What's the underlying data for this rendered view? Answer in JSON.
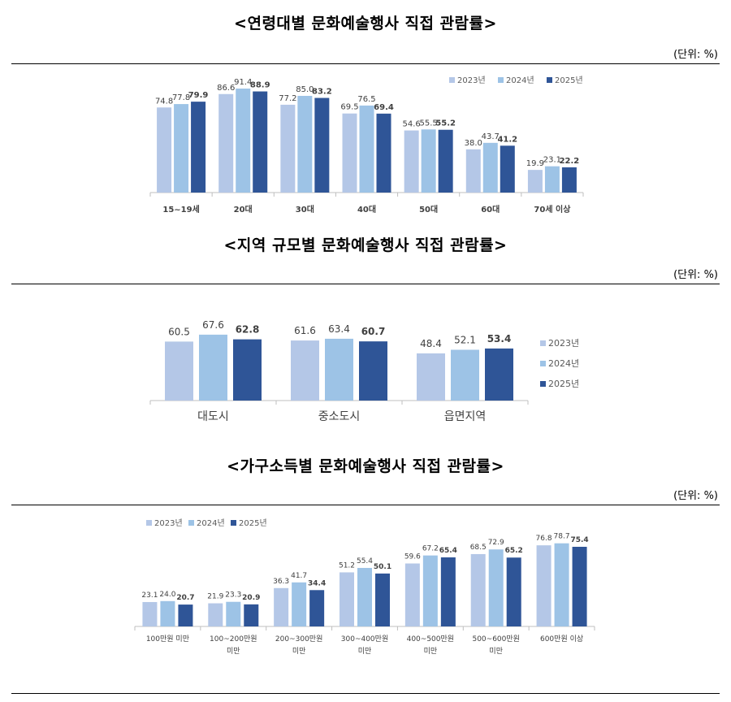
{
  "unit_label": "(단위: %)",
  "colors": {
    "s2023": "#b4c7e7",
    "s2024": "#9dc3e6",
    "s2025": "#2f5597"
  },
  "chart_data": [
    {
      "type": "bar",
      "title": "<연령대별 문화예술행사 직접 관람률>",
      "categories": [
        "15~19세",
        "20대",
        "30대",
        "40대",
        "50대",
        "60대",
        "70세 이상"
      ],
      "ylim": [
        0,
        100
      ],
      "legend": "top-right",
      "series": [
        {
          "name": "2023년",
          "values": [
            74.8,
            86.6,
            77.2,
            69.5,
            54.6,
            38.0,
            19.9
          ]
        },
        {
          "name": "2024년",
          "values": [
            77.8,
            91.4,
            85.0,
            76.5,
            55.5,
            43.7,
            23.1
          ]
        },
        {
          "name": "2025년",
          "values": [
            79.9,
            88.9,
            83.2,
            69.4,
            55.2,
            41.2,
            22.2
          ]
        }
      ]
    },
    {
      "type": "bar",
      "title": "<지역 규모별 문화예술행사 직접 관람률>",
      "categories": [
        "대도시",
        "중소도시",
        "읍면지역"
      ],
      "ylim": [
        0,
        100
      ],
      "legend": "right",
      "series": [
        {
          "name": "2023년",
          "values": [
            60.5,
            61.6,
            48.4
          ]
        },
        {
          "name": "2024년",
          "values": [
            67.6,
            63.4,
            52.1
          ]
        },
        {
          "name": "2025년",
          "values": [
            62.8,
            60.7,
            53.4
          ]
        }
      ]
    },
    {
      "type": "bar",
      "title": "<가구소득별 문화예술행사 직접 관람률>",
      "categories": [
        "100만원 미만",
        "100~200만원\n미만",
        "200~300만원\n미만",
        "300~400만원\n미만",
        "400~500만원\n미만",
        "500~600만원\n미만",
        "600만원 이상"
      ],
      "ylim": [
        0,
        100
      ],
      "legend": "top-left",
      "series": [
        {
          "name": "2023년",
          "values": [
            23.1,
            21.9,
            36.3,
            51.2,
            59.6,
            68.5,
            76.8
          ]
        },
        {
          "name": "2024년",
          "values": [
            24.0,
            23.3,
            41.7,
            55.4,
            67.2,
            72.9,
            78.7
          ]
        },
        {
          "name": "2025년",
          "values": [
            20.7,
            20.9,
            34.4,
            50.1,
            65.4,
            65.2,
            75.4
          ]
        }
      ]
    }
  ]
}
